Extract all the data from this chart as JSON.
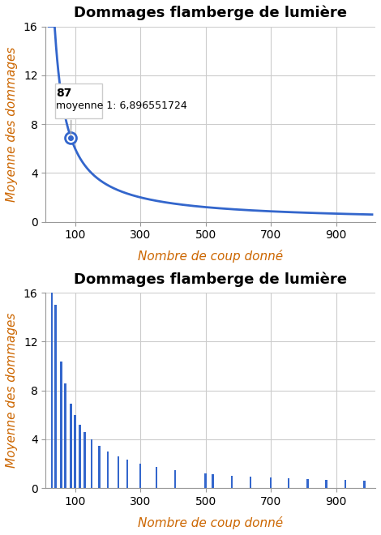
{
  "title": "Dommages flamberge de lumière",
  "xlabel": "Nombre de coup donné",
  "ylabel": "Moyenne des dommages",
  "line_color": "#3366cc",
  "bar_color": "#3366cc",
  "background_color": "#ffffff",
  "grid_color": "#cccccc",
  "ylim": [
    0,
    16
  ],
  "yticks": [
    0,
    4,
    8,
    12,
    16
  ],
  "xlim": [
    10,
    1020
  ],
  "xticks": [
    100,
    300,
    500,
    700,
    900
  ],
  "tooltip_x": 87,
  "tooltip_y": 6.896551724,
  "bar_positions": [
    29,
    40,
    58,
    70,
    87,
    100,
    115,
    130,
    150,
    174,
    200,
    232,
    260,
    300,
    350,
    406,
    500,
    522,
    580,
    638,
    700,
    754,
    812,
    870,
    928,
    986
  ],
  "title_fontsize": 13,
  "axis_label_fontsize": 11,
  "tick_fontsize": 10
}
